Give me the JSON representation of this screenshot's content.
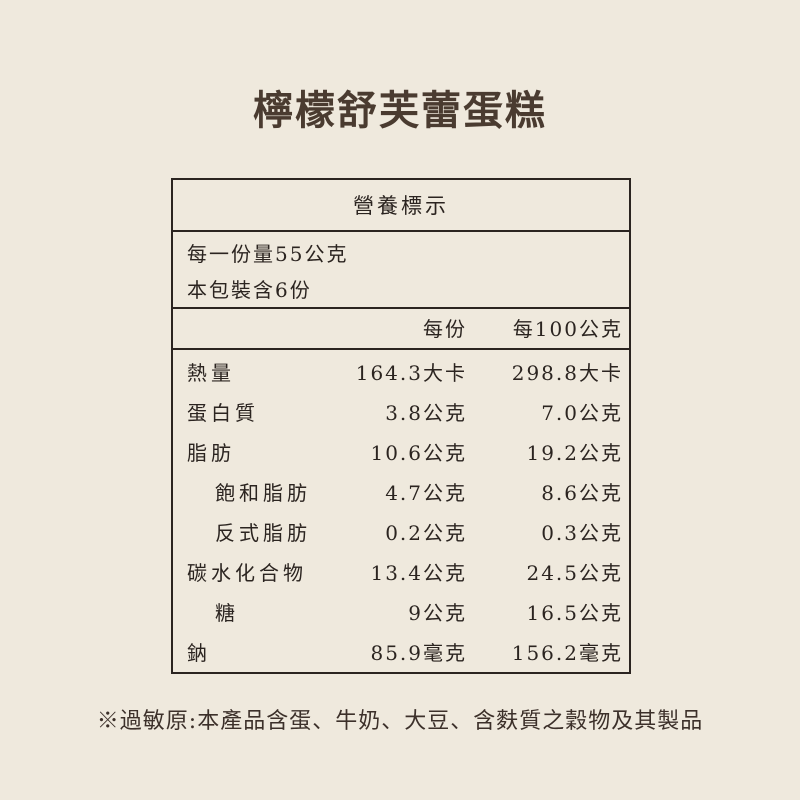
{
  "title": "檸檬舒芙蕾蛋糕",
  "label": {
    "heading": "營養標示",
    "serving_size": "每一份量55公克",
    "servings_per_pack": "本包裝含6份",
    "col_per_serving": "每份",
    "col_per_100g": "每100公克",
    "rows": [
      {
        "name": "熱量",
        "per_serving": "164.3大卡",
        "per_100g": "298.8大卡",
        "indent": false
      },
      {
        "name": "蛋白質",
        "per_serving": "3.8公克",
        "per_100g": "7.0公克",
        "indent": false
      },
      {
        "name": "脂肪",
        "per_serving": "10.6公克",
        "per_100g": "19.2公克",
        "indent": false
      },
      {
        "name": "飽和脂肪",
        "per_serving": "4.7公克",
        "per_100g": "8.6公克",
        "indent": true
      },
      {
        "name": "反式脂肪",
        "per_serving": "0.2公克",
        "per_100g": "0.3公克",
        "indent": true
      },
      {
        "name": "碳水化合物",
        "per_serving": "13.4公克",
        "per_100g": "24.5公克",
        "indent": false
      },
      {
        "name": "糖",
        "per_serving": "9公克",
        "per_100g": "16.5公克",
        "indent": true
      },
      {
        "name": "鈉",
        "per_serving": "85.9毫克",
        "per_100g": "156.2毫克",
        "indent": false
      }
    ]
  },
  "allergen_note": "※過敏原:本產品含蛋、牛奶、大豆、含麩質之穀物及其製品"
}
